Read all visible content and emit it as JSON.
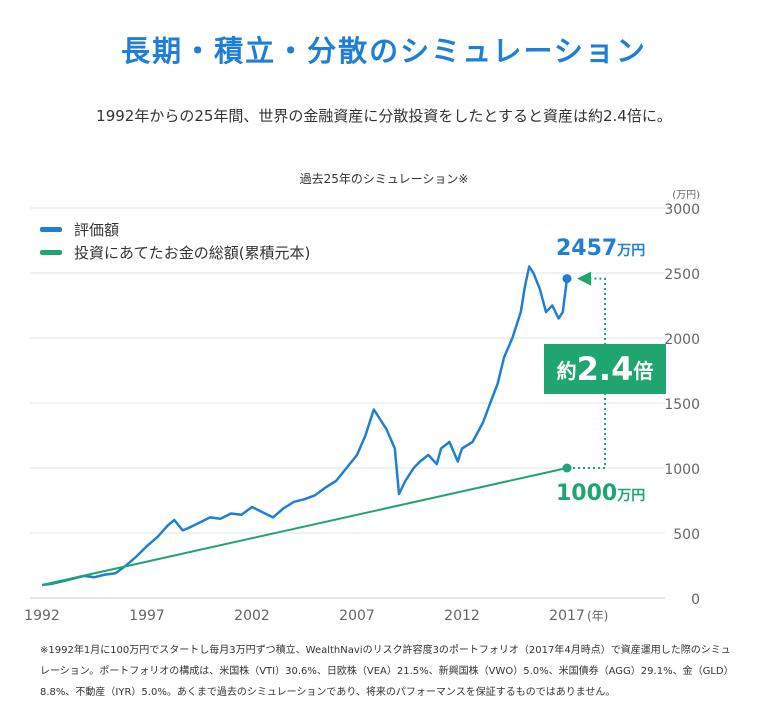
{
  "title": "長期・積立・分散のシミュレーション",
  "subtitle": "1992年からの25年間、世界の金融資産に分散投資をしたとすると資産は約2.4倍に。",
  "chart_data": {
    "type": "line",
    "title": "過去25年のシミュレーション※",
    "ylabel": "(万円)",
    "xlabel": "(年)",
    "ylim": [
      0,
      3000
    ],
    "xlim": [
      1992,
      2021
    ],
    "yticks": [
      0,
      500,
      1000,
      1500,
      2000,
      2500,
      3000
    ],
    "xticks": [
      1992,
      1997,
      2002,
      2007,
      2012,
      2017
    ],
    "legend_position": "top-left",
    "series": [
      {
        "name": "評価額",
        "color": "#1f7fd6",
        "x": [
          1992,
          1992.5,
          1993,
          1993.5,
          1994,
          1994.5,
          1995,
          1995.5,
          1996,
          1996.5,
          1997,
          1997.5,
          1998,
          1998.3,
          1998.7,
          1999,
          1999.5,
          2000,
          2000.5,
          2001,
          2001.5,
          2002,
          2002.5,
          2003,
          2003.5,
          2004,
          2004.5,
          2005,
          2005.5,
          2006,
          2006.5,
          2007,
          2007.4,
          2007.8,
          2008,
          2008.4,
          2008.8,
          2009,
          2009.3,
          2009.7,
          2010,
          2010.4,
          2010.8,
          2011,
          2011.4,
          2011.8,
          2012,
          2012.5,
          2013,
          2013.3,
          2013.7,
          2014,
          2014.4,
          2014.8,
          2015,
          2015.2,
          2015.4,
          2015.7,
          2016,
          2016.3,
          2016.6,
          2016.8,
          2017
        ],
        "values": [
          100,
          110,
          130,
          150,
          170,
          160,
          180,
          190,
          250,
          320,
          400,
          470,
          560,
          600,
          520,
          540,
          580,
          620,
          610,
          650,
          640,
          700,
          660,
          620,
          690,
          740,
          760,
          790,
          850,
          900,
          1000,
          1100,
          1250,
          1450,
          1400,
          1300,
          1150,
          800,
          900,
          1000,
          1050,
          1100,
          1030,
          1150,
          1200,
          1050,
          1150,
          1200,
          1350,
          1480,
          1650,
          1850,
          2000,
          2200,
          2400,
          2550,
          2500,
          2380,
          2200,
          2250,
          2150,
          2200,
          2457
        ]
      },
      {
        "name": "投資にあてたお金の総額(累積元本)",
        "color": "#1fa56f",
        "x": [
          1992,
          2017
        ],
        "values": [
          100,
          1000
        ]
      }
    ],
    "annotations": {
      "end_value": "2457",
      "end_unit": "万円",
      "principal_value": "1000",
      "principal_unit": "万円",
      "ratio_prefix": "約",
      "ratio": "2.4",
      "ratio_suffix": "倍"
    }
  },
  "note": "※1992年1月に100万円でスタートし毎月3万円ずつ積立、WealthNaviのリスク許容度3のポートフォリオ（2017年4月時点）で資産運用した際のシミュレーション。ポートフォリオの構成は、米国株（VTI）30.6%、日欧株（VEA）21.5%、新興国株（VWO）5.0%、米国債券（AGG）29.1%、金（GLD）8.8%、不動産（IYR）5.0%。あくまで過去のシミュレーションであり、将来のパフォーマンスを保証するものではありません。"
}
